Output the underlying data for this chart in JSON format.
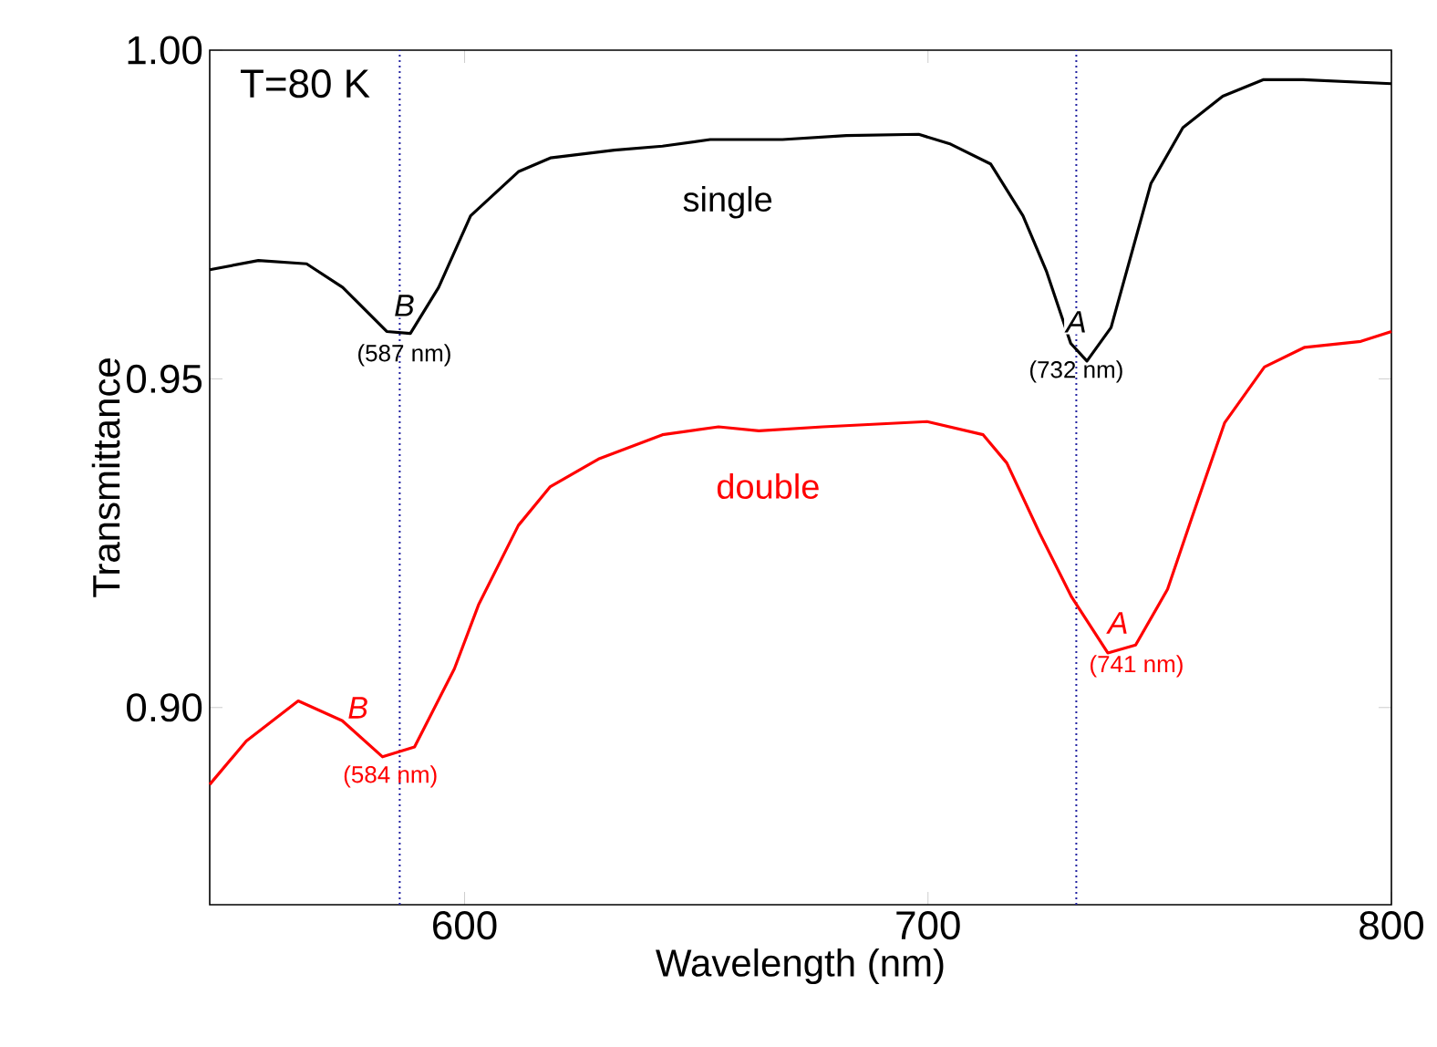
{
  "chart_data": {
    "type": "line",
    "xlabel": "Wavelength (nm)",
    "ylabel": "Transmittance",
    "xlim": [
      545,
      800
    ],
    "ylim": [
      0.87,
      1.0
    ],
    "xticks": [
      600,
      700,
      800
    ],
    "yticks": [
      {
        "value": 0.9,
        "label": "0.90"
      },
      {
        "value": 0.95,
        "label": "0.95"
      },
      {
        "value": 1.0,
        "label": "1.00"
      }
    ],
    "grid": false,
    "legend": false,
    "marker": "none",
    "line_style": "solid",
    "series": [
      {
        "name": "single",
        "color": "#000000",
        "x": [
          545,
          555.5,
          565.9,
          573.7,
          583.2,
          588.3,
          594.4,
          601.3,
          611.6,
          618.5,
          632.3,
          642.7,
          653,
          668.6,
          682.4,
          698,
          704.9,
          713.5,
          720.5,
          725.6,
          730.8,
          734.3,
          739.5,
          748.1,
          755,
          763.6,
          772.3,
          781,
          800
        ],
        "values": [
          0.9666,
          0.968,
          0.9675,
          0.9639,
          0.9572,
          0.9569,
          0.9639,
          0.9748,
          0.9815,
          0.9836,
          0.9848,
          0.9854,
          0.9864,
          0.9864,
          0.987,
          0.9872,
          0.9857,
          0.9827,
          0.9748,
          0.9663,
          0.9554,
          0.9527,
          0.9578,
          0.9797,
          0.9882,
          0.993,
          0.9955,
          0.9955,
          0.9949
        ]
      },
      {
        "name": "double",
        "color": "#ff0000",
        "x": [
          545,
          552.9,
          564.1,
          573.6,
          582.3,
          589.2,
          597.8,
          603,
          611.6,
          618.5,
          628.9,
          642.7,
          654.8,
          663.5,
          677.3,
          699.8,
          711.9,
          717,
          724.1,
          731,
          738.8,
          744.8,
          751.7,
          756.9,
          764,
          772.6,
          781.3,
          793.4,
          800
        ],
        "values": [
          0.8883,
          0.8949,
          0.901,
          0.898,
          0.8925,
          0.894,
          0.9059,
          0.9156,
          0.9277,
          0.9336,
          0.9378,
          0.9415,
          0.9427,
          0.9421,
          0.9427,
          0.9435,
          0.9415,
          0.9372,
          0.9265,
          0.9168,
          0.9083,
          0.9095,
          0.918,
          0.9288,
          0.9433,
          0.9518,
          0.9548,
          0.9557,
          0.9572
        ]
      }
    ],
    "ref_lines": [
      {
        "axis": "x",
        "value": 586,
        "color": "#2020a0",
        "line_style": "dotted"
      },
      {
        "axis": "x",
        "value": 732,
        "color": "#2020a0",
        "line_style": "dotted"
      }
    ],
    "annotations": [
      "T=80 K",
      {
        "text": "*B*",
        "x": 587,
        "y": 0.957
      },
      {
        "text": "(587 nm)",
        "x": 587,
        "y": 0.957
      },
      {
        "text": "*A*",
        "x": 732,
        "y": 0.9545
      },
      {
        "text": "(732 nm)",
        "x": 732,
        "y": 0.9545
      },
      {
        "text": "*B*",
        "x": 577,
        "y": 0.8958
      },
      {
        "text": "(584 nm)",
        "x": 584,
        "y": 0.8929
      },
      {
        "text": "*A*",
        "x": 741,
        "y": 0.9087
      },
      {
        "text": "(741 nm)",
        "x": 745,
        "y": 0.9097
      }
    ]
  }
}
